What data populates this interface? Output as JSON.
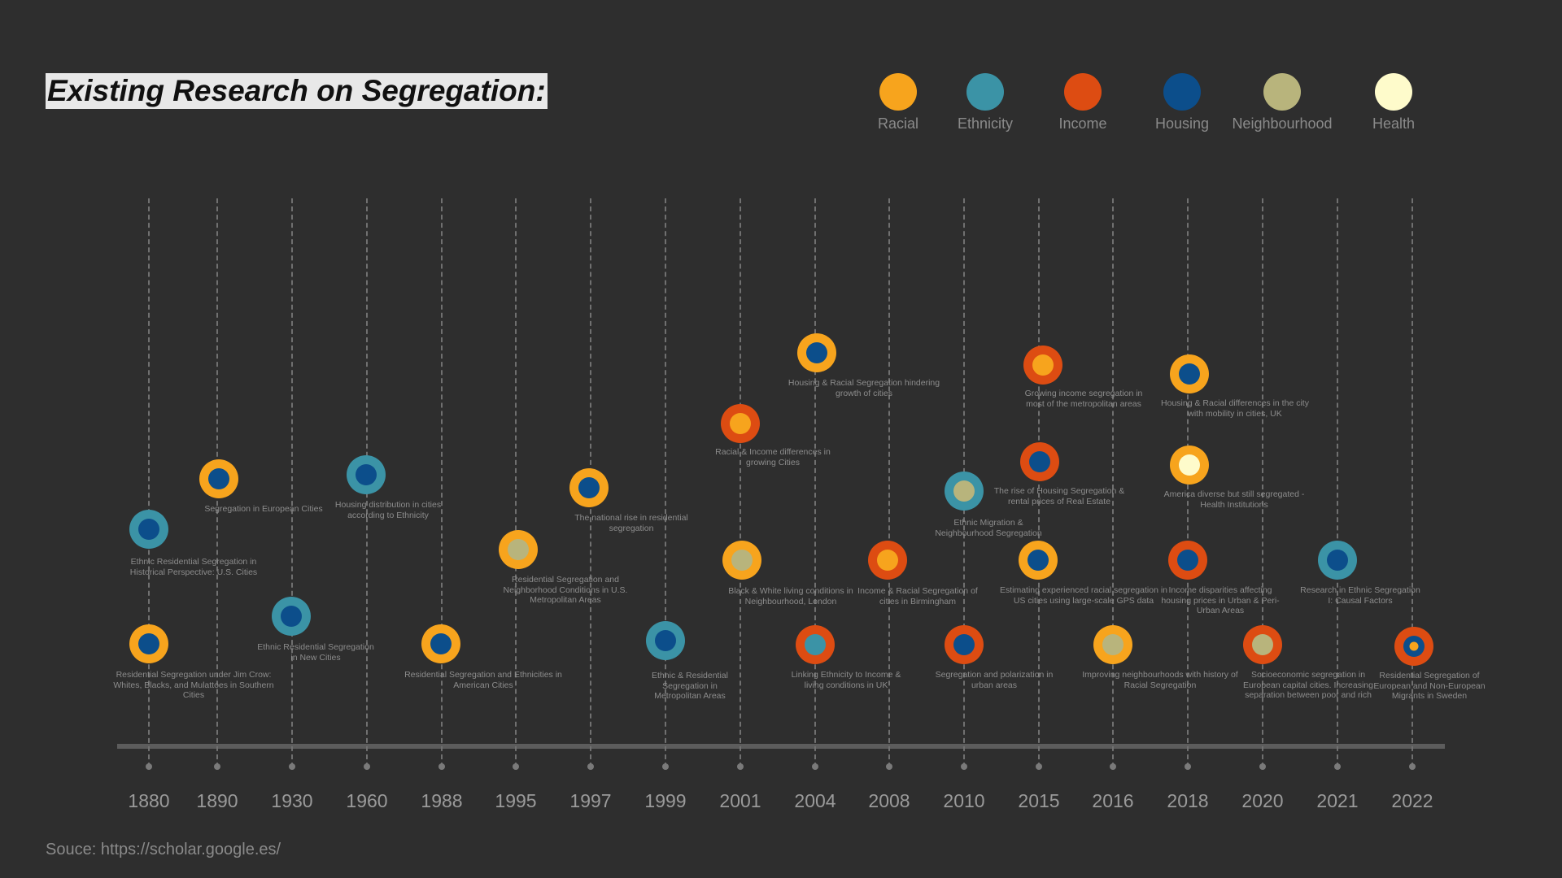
{
  "title": "Existing Research on Segregation:",
  "source": "Souce:  https://scholar.google.es/",
  "colors": {
    "racial": "#f7a41d",
    "ethnicity": "#3b93a6",
    "income": "#dd4c12",
    "housing": "#0c4e8b",
    "neighbourhood": "#b8b47c",
    "health": "#fefbcb"
  },
  "legend": [
    {
      "key": "racial",
      "label": "Racial"
    },
    {
      "key": "ethnicity",
      "label": "Ethnicity"
    },
    {
      "key": "income",
      "label": "Income"
    },
    {
      "key": "housing",
      "label": "Housing"
    },
    {
      "key": "neighbourhood",
      "label": "Neighbourhood"
    },
    {
      "key": "health",
      "label": "Health"
    }
  ],
  "years": [
    "1880",
    "1890",
    "1930",
    "1960",
    "1988",
    "1995",
    "1997",
    "1999",
    "2001",
    "2004",
    "2008",
    "2010",
    "2015",
    "2016",
    "2018",
    "2020",
    "2021",
    "2022"
  ],
  "studies": [
    {
      "year": "1880",
      "outer": "ethnicity",
      "inner": "housing",
      "label": "Ethnic Residential Segregation in Historical Perspective: U.S. Cities"
    },
    {
      "year": "1880",
      "outer": "racial",
      "inner": "housing",
      "label": "Residential Segregation under Jim Crow: Whites, Blacks, and Mulattoes in Southern Cities"
    },
    {
      "year": "1890",
      "outer": "racial",
      "inner": "housing",
      "label": "Segregation in European Cities"
    },
    {
      "year": "1930",
      "outer": "ethnicity",
      "inner": "housing",
      "label": "Ethnic Residential Segregation in New Cities"
    },
    {
      "year": "1960",
      "outer": "ethnicity",
      "inner": "housing",
      "label": "Housing distribution in cities according to Ethnicity"
    },
    {
      "year": "1988",
      "outer": "racial",
      "inner": "housing",
      "label": "Residential Segregation and Ethnicities in American Cities"
    },
    {
      "year": "1995",
      "outer": "racial",
      "inner": "neighbourhood",
      "label": "Residential Segregation and Neighborhood Conditions in U.S. Metropolitan Areas"
    },
    {
      "year": "1997",
      "outer": "racial",
      "inner": "housing",
      "label": "The national rise in residential segregation"
    },
    {
      "year": "1999",
      "outer": "ethnicity",
      "inner": "housing",
      "label": "Ethnic & Residential Segregation in Metropolitan Areas"
    },
    {
      "year": "2001",
      "outer": "income",
      "inner": "racial",
      "label": "Racial & Income differences in growing Cities"
    },
    {
      "year": "2001",
      "outer": "racial",
      "inner": "neighbourhood",
      "label": "Black & White living conditions in Neighbourhood, London"
    },
    {
      "year": "2004",
      "outer": "racial",
      "inner": "housing",
      "label": "Housing & Racial Segregation hindering growth of cities"
    },
    {
      "year": "2004",
      "outer": "income",
      "inner": "ethnicity",
      "label": "Linking Ethnicity to Income & living conditions in UK"
    },
    {
      "year": "2008",
      "outer": "income",
      "inner": "racial",
      "label": "Income & Racial Segregation of cities in Birmingham"
    },
    {
      "year": "2010",
      "outer": "ethnicity",
      "inner": "neighbourhood",
      "label": "Ethnic Migration & Neighbourhood Segregation"
    },
    {
      "year": "2010",
      "outer": "income",
      "inner": "housing",
      "label": "Segregation and polarization in urban areas"
    },
    {
      "year": "2015",
      "outer": "income",
      "inner": "racial",
      "label": "Growing income segregation in most of the metropolitan areas"
    },
    {
      "year": "2015",
      "outer": "income",
      "inner": "housing",
      "label": "The rise of Housing Segregation & rental prices of Real Estate"
    },
    {
      "year": "2015",
      "outer": "racial",
      "inner": "housing",
      "label": "Estimating experienced racial segregation in US cities using large-scale GPS data"
    },
    {
      "year": "2016",
      "outer": "racial",
      "inner": "neighbourhood",
      "label": "Improving neighbourhoods with history of Racial Segregation"
    },
    {
      "year": "2018",
      "outer": "racial",
      "inner": "housing",
      "label": "Housing & Racial differences in the city with mobility in cities, UK"
    },
    {
      "year": "2018",
      "outer": "racial",
      "inner": "health",
      "label": "America diverse but still segregated - Health Institutions"
    },
    {
      "year": "2018",
      "outer": "income",
      "inner": "housing",
      "label": "Income disparities affecting housing prices in Urban & Peri-Urban Areas"
    },
    {
      "year": "2020",
      "outer": "income",
      "inner": "neighbourhood",
      "label": "Socioeconomic segregation in European capital cities. Increasing separation between poor and rich"
    },
    {
      "year": "2021",
      "outer": "ethnicity",
      "inner": "housing",
      "label": "Research in Ethnic Segregation I: Causal Factors"
    },
    {
      "year": "2022",
      "outer": "income",
      "inner": "housing",
      "core": "racial",
      "label": "Residential Segregation of European and Non-European Migrants in Sweden"
    }
  ]
}
